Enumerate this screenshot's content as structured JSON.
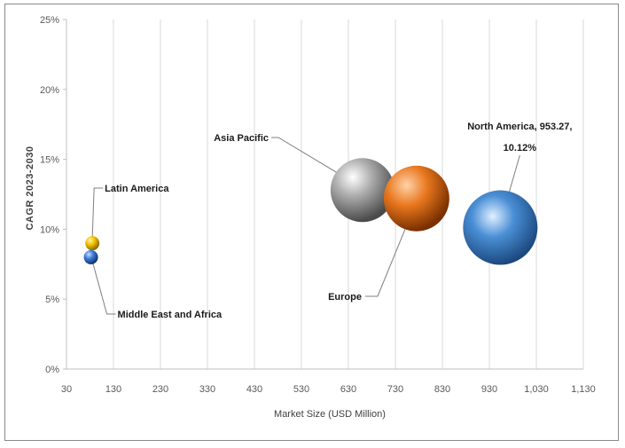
{
  "chart_data": {
    "type": "bubble",
    "title": "",
    "xlabel": "Market Size (USD Million)",
    "ylabel": "CAGR 2023-2030",
    "xlim": [
      30,
      1130
    ],
    "ylim": [
      0,
      25
    ],
    "x_ticks": [
      30,
      130,
      230,
      330,
      430,
      530,
      630,
      730,
      830,
      930,
      1030,
      1130
    ],
    "x_tick_labels": [
      "30",
      "130",
      "230",
      "330",
      "430",
      "530",
      "630",
      "730",
      "830",
      "930",
      "1,030",
      "1,130"
    ],
    "y_ticks": [
      0,
      5,
      10,
      15,
      20,
      25
    ],
    "y_tick_labels": [
      "0%",
      "5%",
      "10%",
      "15%",
      "20%",
      "25%"
    ],
    "grid": "vertical",
    "series": [
      {
        "name": "Latin America",
        "label": "Latin America",
        "x": 85,
        "y": 9.0,
        "size": 8,
        "color": "#f2c200"
      },
      {
        "name": "Middle East and Africa",
        "label": "Middle East and Africa",
        "x": 82,
        "y": 8.0,
        "size": 8,
        "color": "#3d7bd8"
      },
      {
        "name": "Asia Pacific",
        "label": "Asia Pacific",
        "x": 660,
        "y": 12.8,
        "size": 36,
        "color": "#9a9a9a"
      },
      {
        "name": "Europe",
        "label": "Europe",
        "x": 775,
        "y": 12.2,
        "size": 37,
        "color": "#e8771e"
      },
      {
        "name": "North America",
        "label_line1": "North America, 953.27,",
        "label_line2": "10.12%",
        "x": 953.27,
        "y": 10.12,
        "size": 42,
        "color": "#4a8fd6"
      }
    ]
  }
}
